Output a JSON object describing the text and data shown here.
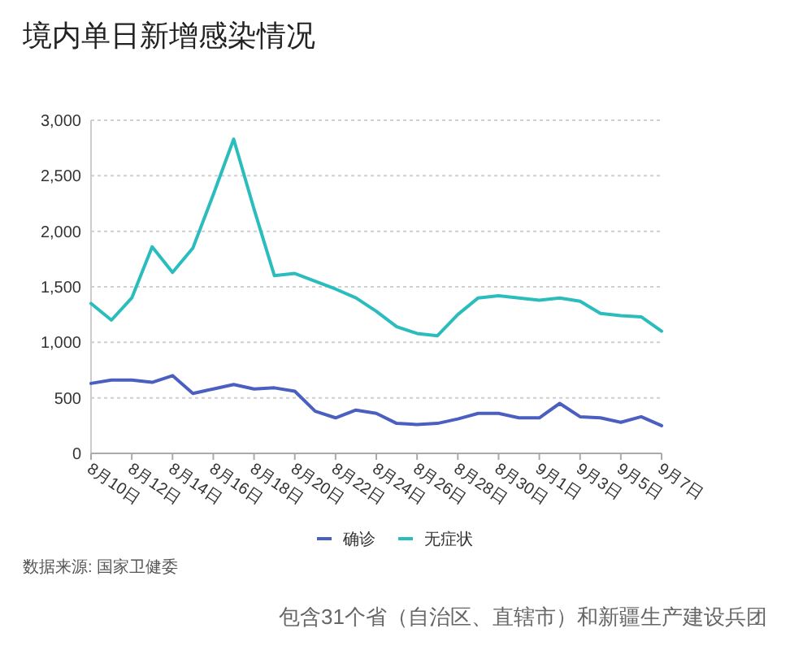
{
  "chart_data": {
    "type": "line",
    "title": "境内单日新增感染情况",
    "categories": [
      "8月10日",
      null,
      "8月12日",
      null,
      "8月14日",
      null,
      "8月16日",
      null,
      "8月18日",
      null,
      "8月20日",
      null,
      "8月22日",
      null,
      "8月24日",
      null,
      "8月26日",
      null,
      "8月28日",
      null,
      "8月30日",
      null,
      "9月1日",
      null,
      "9月3日",
      null,
      "9月5日",
      null,
      "9月7日"
    ],
    "series": [
      {
        "name": "确诊",
        "color": "#4a5fc0",
        "values": [
          630,
          660,
          660,
          640,
          700,
          540,
          580,
          620,
          580,
          590,
          560,
          380,
          320,
          390,
          360,
          270,
          260,
          270,
          310,
          360,
          360,
          320,
          320,
          450,
          330,
          320,
          280,
          330,
          250
        ]
      },
      {
        "name": "无症状",
        "color": "#2bbdbd",
        "values": [
          1350,
          1200,
          1400,
          1860,
          1630,
          1850,
          2330,
          2830,
          2200,
          1600,
          1620,
          1550,
          1480,
          1400,
          1280,
          1140,
          1080,
          1060,
          1250,
          1400,
          1420,
          1400,
          1380,
          1400,
          1370,
          1260,
          1240,
          1230,
          1100
        ]
      }
    ],
    "ylim": [
      0,
      3000
    ],
    "yticks": [
      0,
      500,
      {
        "value": 1000,
        "label": "1,000"
      },
      {
        "value": 1500,
        "label": "1,500"
      },
      {
        "value": 2000,
        "label": "2,000"
      },
      {
        "value": 2500,
        "label": "2,500"
      },
      {
        "value": 3000,
        "label": "3,000"
      }
    ],
    "grid": "y",
    "legend": "bottom",
    "annotations": [
      "数据来源: 国家卫健委",
      "包含31个省（自治区、直辖市）和新疆生产建设兵团"
    ]
  }
}
